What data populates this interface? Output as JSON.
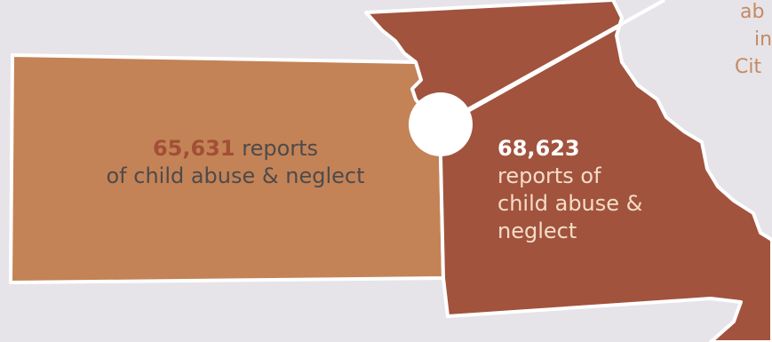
{
  "colors": {
    "background": "#e6e4e9",
    "kansas_fill": "#c38357",
    "missouri_fill": "#a1533d",
    "outline": "#ffffff",
    "kansas_number": "#a24f36",
    "kansas_text": "#4e4a4a",
    "missouri_number": "#ffffff",
    "missouri_text": "#f4ddc8",
    "corner_text": "#c48a64"
  },
  "kansas": {
    "number": "65,631",
    "text_line1": " reports",
    "text_line2": "of child abuse & neglect"
  },
  "missouri": {
    "number": "68,623",
    "text_line1": "reports of",
    "text_line2": "child abuse &",
    "text_line3": "neglect"
  },
  "corner_text": {
    "line1": "ab",
    "line2": "in",
    "line3": "Cit"
  }
}
